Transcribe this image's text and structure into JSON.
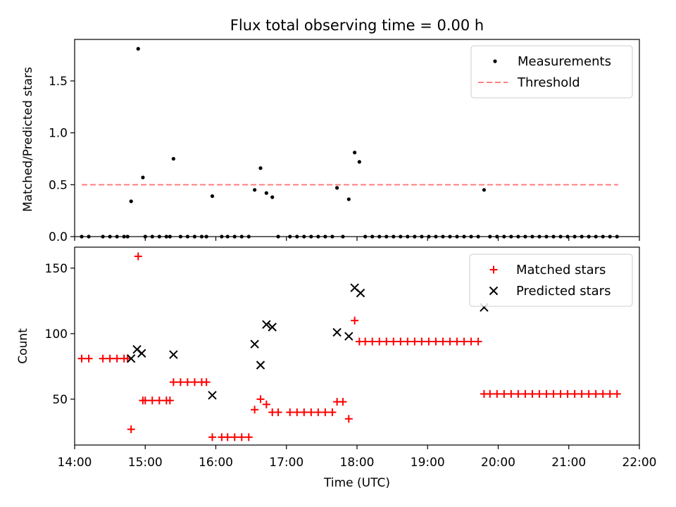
{
  "chart_data": [
    {
      "type": "scatter",
      "title": "Flux total observing time = 0.00 h",
      "xlabel": "",
      "ylabel": "Matched/Predicted stars",
      "xlim": [
        "14:00",
        "22:00"
      ],
      "ylim": [
        0,
        1.9
      ],
      "yticks": [
        "0.0",
        "0.5",
        "1.0",
        "1.5"
      ],
      "legend_position": "top-right",
      "series": [
        {
          "name": "Measurements",
          "marker": "dot",
          "color": "#000000",
          "points": [
            [
              "14:06",
              0
            ],
            [
              "14:12",
              0
            ],
            [
              "14:24",
              0
            ],
            [
              "14:30",
              0
            ],
            [
              "14:36",
              0
            ],
            [
              "14:42",
              0
            ],
            [
              "14:45",
              0
            ],
            [
              "14:48",
              0.34
            ],
            [
              "14:54",
              1.81
            ],
            [
              "14:58",
              0.57
            ],
            [
              "15:00",
              0
            ],
            [
              "15:06",
              0
            ],
            [
              "15:12",
              0
            ],
            [
              "15:18",
              0
            ],
            [
              "15:21",
              0
            ],
            [
              "15:24",
              0.75
            ],
            [
              "15:30",
              0
            ],
            [
              "15:36",
              0
            ],
            [
              "15:42",
              0
            ],
            [
              "15:48",
              0
            ],
            [
              "15:52",
              0
            ],
            [
              "15:57",
              0.39
            ],
            [
              "16:05",
              0
            ],
            [
              "16:10",
              0
            ],
            [
              "16:16",
              0
            ],
            [
              "16:22",
              0
            ],
            [
              "16:28",
              0
            ],
            [
              "16:33",
              0.45
            ],
            [
              "16:38",
              0.66
            ],
            [
              "16:43",
              0.42
            ],
            [
              "16:48",
              0.38
            ],
            [
              "16:53",
              0
            ],
            [
              "17:03",
              0
            ],
            [
              "17:09",
              0
            ],
            [
              "17:15",
              0
            ],
            [
              "17:21",
              0
            ],
            [
              "17:27",
              0
            ],
            [
              "17:33",
              0
            ],
            [
              "17:39",
              0
            ],
            [
              "17:43",
              0.47
            ],
            [
              "17:48",
              0
            ],
            [
              "17:53",
              0.36
            ],
            [
              "17:58",
              0.81
            ],
            [
              "18:02",
              0.72
            ],
            [
              "18:07",
              0
            ],
            [
              "18:13",
              0
            ],
            [
              "18:19",
              0
            ],
            [
              "18:25",
              0
            ],
            [
              "18:31",
              0
            ],
            [
              "18:37",
              0
            ],
            [
              "18:43",
              0
            ],
            [
              "18:49",
              0
            ],
            [
              "18:55",
              0
            ],
            [
              "19:01",
              0
            ],
            [
              "19:07",
              0
            ],
            [
              "19:13",
              0
            ],
            [
              "19:19",
              0
            ],
            [
              "19:25",
              0
            ],
            [
              "19:31",
              0
            ],
            [
              "19:37",
              0
            ],
            [
              "19:43",
              0
            ],
            [
              "19:48",
              0.45
            ],
            [
              "19:53",
              0
            ],
            [
              "19:59",
              0
            ],
            [
              "20:05",
              0
            ],
            [
              "20:11",
              0
            ],
            [
              "20:17",
              0
            ],
            [
              "20:23",
              0
            ],
            [
              "20:29",
              0
            ],
            [
              "20:35",
              0
            ],
            [
              "20:41",
              0
            ],
            [
              "20:47",
              0
            ],
            [
              "20:53",
              0
            ],
            [
              "20:59",
              0
            ],
            [
              "21:05",
              0
            ],
            [
              "21:11",
              0
            ],
            [
              "21:17",
              0
            ],
            [
              "21:23",
              0
            ],
            [
              "21:29",
              0
            ],
            [
              "21:35",
              0
            ],
            [
              "21:41",
              0
            ]
          ]
        },
        {
          "name": "Threshold",
          "marker": "dashed-line",
          "color": "#ff7f7f",
          "points": [
            [
              "14:06",
              0.5
            ],
            [
              "21:42",
              0.5
            ]
          ]
        }
      ]
    },
    {
      "type": "scatter",
      "title": "",
      "xlabel": "Time (UTC)",
      "ylabel": "Count",
      "xlim": [
        "14:00",
        "22:00"
      ],
      "ylim": [
        15,
        166
      ],
      "yticks": [
        "50",
        "100",
        "150"
      ],
      "xticks": [
        "14:00",
        "15:00",
        "16:00",
        "17:00",
        "18:00",
        "19:00",
        "20:00",
        "21:00",
        "22:00"
      ],
      "legend_position": "top-right",
      "series": [
        {
          "name": "Matched stars",
          "marker": "plus",
          "color": "#ff0000",
          "points": [
            [
              "14:06",
              81
            ],
            [
              "14:12",
              81
            ],
            [
              "14:24",
              81
            ],
            [
              "14:30",
              81
            ],
            [
              "14:36",
              81
            ],
            [
              "14:42",
              81
            ],
            [
              "14:45",
              81
            ],
            [
              "14:48",
              27
            ],
            [
              "14:54",
              159
            ],
            [
              "14:58",
              49
            ],
            [
              "15:00",
              49
            ],
            [
              "15:06",
              49
            ],
            [
              "15:12",
              49
            ],
            [
              "15:18",
              49
            ],
            [
              "15:21",
              49
            ],
            [
              "15:24",
              63
            ],
            [
              "15:30",
              63
            ],
            [
              "15:36",
              63
            ],
            [
              "15:42",
              63
            ],
            [
              "15:48",
              63
            ],
            [
              "15:52",
              63
            ],
            [
              "15:57",
              21
            ],
            [
              "16:05",
              21
            ],
            [
              "16:10",
              21
            ],
            [
              "16:16",
              21
            ],
            [
              "16:22",
              21
            ],
            [
              "16:28",
              21
            ],
            [
              "16:33",
              42
            ],
            [
              "16:38",
              50
            ],
            [
              "16:43",
              46
            ],
            [
              "16:48",
              40
            ],
            [
              "16:53",
              40
            ],
            [
              "17:03",
              40
            ],
            [
              "17:09",
              40
            ],
            [
              "17:15",
              40
            ],
            [
              "17:21",
              40
            ],
            [
              "17:27",
              40
            ],
            [
              "17:33",
              40
            ],
            [
              "17:39",
              40
            ],
            [
              "17:43",
              48
            ],
            [
              "17:48",
              48
            ],
            [
              "17:53",
              35
            ],
            [
              "17:58",
              110
            ],
            [
              "18:02",
              94
            ],
            [
              "18:07",
              94
            ],
            [
              "18:13",
              94
            ],
            [
              "18:19",
              94
            ],
            [
              "18:25",
              94
            ],
            [
              "18:31",
              94
            ],
            [
              "18:37",
              94
            ],
            [
              "18:43",
              94
            ],
            [
              "18:49",
              94
            ],
            [
              "18:55",
              94
            ],
            [
              "19:01",
              94
            ],
            [
              "19:07",
              94
            ],
            [
              "19:13",
              94
            ],
            [
              "19:19",
              94
            ],
            [
              "19:25",
              94
            ],
            [
              "19:31",
              94
            ],
            [
              "19:37",
              94
            ],
            [
              "19:43",
              94
            ],
            [
              "19:48",
              54
            ],
            [
              "19:53",
              54
            ],
            [
              "19:59",
              54
            ],
            [
              "20:05",
              54
            ],
            [
              "20:11",
              54
            ],
            [
              "20:17",
              54
            ],
            [
              "20:23",
              54
            ],
            [
              "20:29",
              54
            ],
            [
              "20:35",
              54
            ],
            [
              "20:41",
              54
            ],
            [
              "20:47",
              54
            ],
            [
              "20:53",
              54
            ],
            [
              "20:59",
              54
            ],
            [
              "21:05",
              54
            ],
            [
              "21:11",
              54
            ],
            [
              "21:17",
              54
            ],
            [
              "21:23",
              54
            ],
            [
              "21:29",
              54
            ],
            [
              "21:35",
              54
            ],
            [
              "21:41",
              54
            ]
          ]
        },
        {
          "name": "Predicted stars",
          "marker": "x",
          "color": "#000000",
          "points": [
            [
              "14:48",
              81
            ],
            [
              "14:53",
              88
            ],
            [
              "14:57",
              85
            ],
            [
              "15:24",
              84
            ],
            [
              "15:57",
              53
            ],
            [
              "16:33",
              92
            ],
            [
              "16:38",
              76
            ],
            [
              "16:43",
              107
            ],
            [
              "16:48",
              105
            ],
            [
              "17:43",
              101
            ],
            [
              "17:53",
              98
            ],
            [
              "17:58",
              135
            ],
            [
              "18:03",
              131
            ],
            [
              "19:48",
              120
            ]
          ]
        }
      ]
    }
  ]
}
